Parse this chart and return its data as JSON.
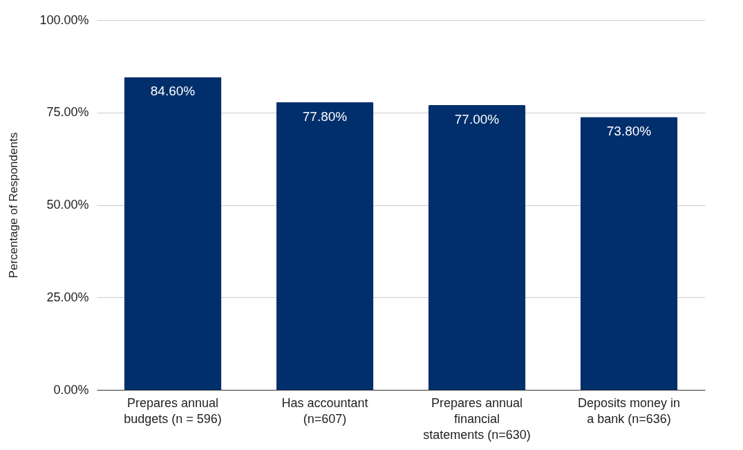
{
  "chart_data": {
    "type": "bar",
    "ylabel": "Percentage of Respondents",
    "categories": [
      "Prepares annual budgets (n = 596)",
      "Has accountant (n=607)",
      "Prepares annual financial statements (n=630)",
      "Deposits money in a bank (n=636)"
    ],
    "values": [
      84.6,
      77.8,
      77.0,
      73.8
    ],
    "value_labels": [
      "84.60%",
      "77.80%",
      "77.00%",
      "73.80%"
    ],
    "color": "#002f6c",
    "ylim": [
      0,
      100
    ],
    "yticks": [
      {
        "value": 0,
        "label": "0.00%"
      },
      {
        "value": 25,
        "label": "25.00%"
      },
      {
        "value": 50,
        "label": "50.00%"
      },
      {
        "value": 75,
        "label": "75.00%"
      },
      {
        "value": 100,
        "label": "100.00%"
      }
    ],
    "grid": "y"
  }
}
